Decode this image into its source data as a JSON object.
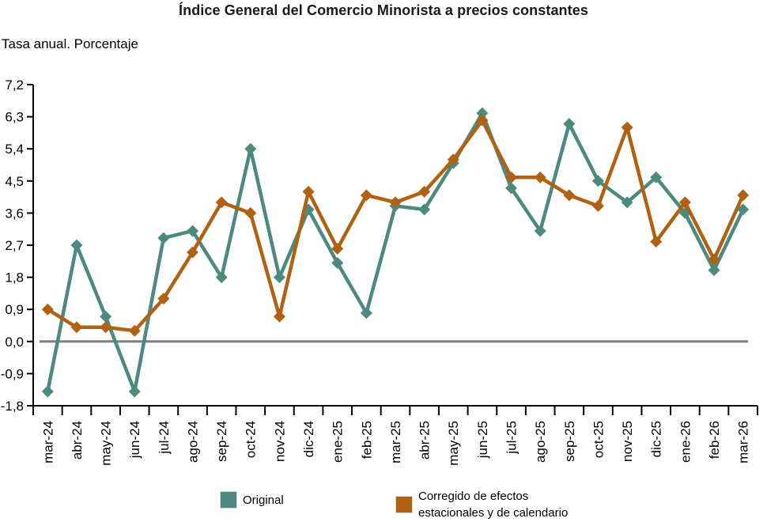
{
  "title": "Índice General del Comercio Minorista a precios constantes",
  "subtitle": "Tasa anual. Porcentaje",
  "colors": {
    "original_series": "#4C8A7F",
    "corrected_series": "#B06212",
    "zero_line": "#7F7F7F",
    "axis": "#000000"
  },
  "legend": {
    "original_label": "Original",
    "corrected_label_line1": "Corregido de efectos",
    "corrected_label_line2": "estacionales y de calendario"
  },
  "chart_data": {
    "type": "line",
    "title": "Índice General del Comercio Minorista a precios constantes",
    "ylabel": "Tasa anual. Porcentaje",
    "categories": [
      "mar-24",
      "abr-24",
      "may-24",
      "jun-24",
      "jul-24",
      "ago-24",
      "sep-24",
      "oct-24",
      "nov-24",
      "dic-24",
      "ene-25",
      "feb-25",
      "mar-25",
      "abr-25",
      "may-25",
      "jun-25",
      "jul-25",
      "ago-25",
      "sep-25",
      "oct-25",
      "nov-25",
      "dic-25",
      "ene-26",
      "feb-26",
      "mar-26"
    ],
    "series": [
      {
        "name": "Original",
        "color": "#4C8A7F",
        "values": [
          -1.4,
          2.7,
          0.7,
          -1.4,
          2.9,
          3.1,
          1.8,
          5.4,
          1.8,
          3.7,
          2.2,
          0.8,
          3.8,
          3.7,
          5.0,
          6.4,
          4.3,
          3.1,
          6.1,
          4.5,
          3.9,
          4.6,
          3.6,
          2.0,
          3.7
        ]
      },
      {
        "name": "Corregido de efectos estacionales y de calendario",
        "color": "#B06212",
        "values": [
          0.9,
          0.4,
          0.4,
          0.3,
          1.2,
          2.5,
          3.9,
          3.6,
          0.7,
          4.2,
          2.6,
          4.1,
          3.9,
          4.2,
          5.1,
          6.2,
          4.6,
          4.6,
          4.1,
          3.8,
          6.0,
          2.8,
          3.9,
          2.3,
          4.1
        ]
      }
    ],
    "ylim": [
      -1.8,
      7.2
    ],
    "yticks": [
      7.2,
      6.3,
      5.4,
      4.5,
      3.6,
      2.7,
      1.8,
      0.9,
      0.0,
      -0.9,
      -1.8
    ],
    "decimal_separator": ",",
    "grid": false,
    "zero_line": true,
    "legend_position": "bottom",
    "marker": "diamond"
  }
}
